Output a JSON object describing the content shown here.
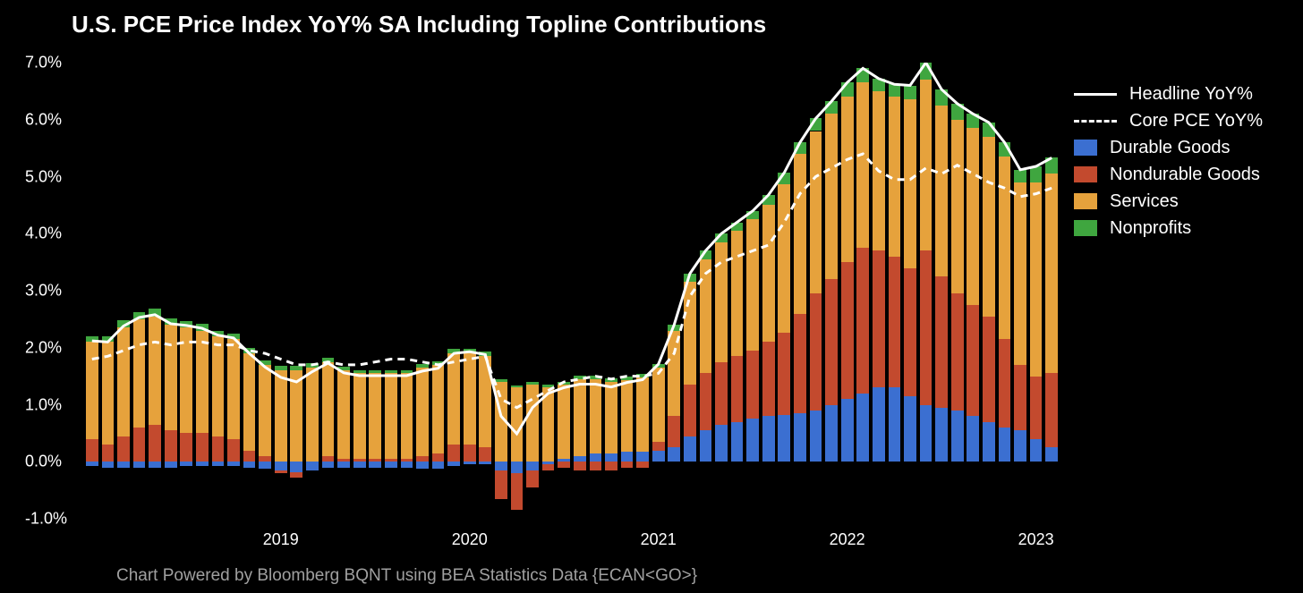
{
  "title": "U.S. PCE Price Index YoY% SA Including Topline Contributions",
  "footer": "Chart Powered by Bloomberg BQNT using BEA Statistics Data    {ECAN<GO>}",
  "chart": {
    "type": "stacked-bar-with-lines",
    "background_color": "#000000",
    "text_color": "#ffffff",
    "footer_color": "#a0a0a0",
    "title_fontsize": 26,
    "axis_fontsize": 18,
    "legend_fontsize": 20,
    "footer_fontsize": 19,
    "ylim": [
      -1.0,
      7.0
    ],
    "yticks": [
      -1.0,
      0.0,
      1.0,
      2.0,
      3.0,
      4.0,
      5.0,
      6.0,
      7.0
    ],
    "ytick_labels": [
      "-1.0%",
      "0.0%",
      "1.0%",
      "2.0%",
      "3.0%",
      "4.0%",
      "5.0%",
      "6.0%",
      "7.0%"
    ],
    "xtick_years": [
      "2019",
      "2020",
      "2021",
      "2022",
      "2023"
    ],
    "xtick_indices": [
      12,
      24,
      36,
      48,
      60
    ],
    "bar_gap_ratio": 0.22,
    "series_colors": {
      "durable": "#3b6fd1",
      "nondurable": "#c34a2e",
      "services": "#e6a23c",
      "nonprofits": "#3fa63f"
    },
    "line_styles": {
      "headline": {
        "color": "#ffffff",
        "width": 3,
        "dash": "none"
      },
      "core": {
        "color": "#ffffff",
        "width": 3,
        "dash": "8,6"
      }
    },
    "legend": [
      {
        "kind": "line",
        "style": "headline",
        "label": "Headline YoY%"
      },
      {
        "kind": "line",
        "style": "core",
        "label": "Core PCE YoY%"
      },
      {
        "kind": "swatch",
        "color_key": "durable",
        "label": "Durable Goods"
      },
      {
        "kind": "swatch",
        "color_key": "nondurable",
        "label": "Nondurable Goods"
      },
      {
        "kind": "swatch",
        "color_key": "services",
        "label": "Services"
      },
      {
        "kind": "swatch",
        "color_key": "nonprofits",
        "label": "Nonprofits"
      }
    ],
    "stack_order": [
      "durable",
      "nondurable",
      "services",
      "nonprofits"
    ],
    "bars": [
      {
        "durable": -0.08,
        "nondurable": 0.4,
        "services": 1.7,
        "nonprofits": 0.1
      },
      {
        "durable": -0.1,
        "nondurable": 0.3,
        "services": 1.8,
        "nonprofits": 0.1
      },
      {
        "durable": -0.1,
        "nondurable": 0.45,
        "services": 1.9,
        "nonprofits": 0.13
      },
      {
        "durable": -0.1,
        "nondurable": 0.6,
        "services": 1.9,
        "nonprofits": 0.13
      },
      {
        "durable": -0.1,
        "nondurable": 0.65,
        "services": 1.9,
        "nonprofits": 0.13
      },
      {
        "durable": -0.1,
        "nondurable": 0.55,
        "services": 1.85,
        "nonprofits": 0.12
      },
      {
        "durable": -0.08,
        "nondurable": 0.5,
        "services": 1.85,
        "nonprofits": 0.12
      },
      {
        "durable": -0.08,
        "nondurable": 0.5,
        "services": 1.8,
        "nonprofits": 0.12
      },
      {
        "durable": -0.08,
        "nondurable": 0.45,
        "services": 1.75,
        "nonprofits": 0.1
      },
      {
        "durable": -0.08,
        "nondurable": 0.4,
        "services": 1.75,
        "nonprofits": 0.1
      },
      {
        "durable": -0.1,
        "nondurable": 0.2,
        "services": 1.7,
        "nonprofits": 0.1
      },
      {
        "durable": -0.12,
        "nondurable": 0.1,
        "services": 1.6,
        "nonprofits": 0.08
      },
      {
        "durable": -0.15,
        "nondurable": -0.05,
        "services": 1.6,
        "nonprofits": 0.08
      },
      {
        "durable": -0.18,
        "nondurable": -0.1,
        "services": 1.6,
        "nonprofits": 0.08
      },
      {
        "durable": -0.15,
        "nondurable": 0.0,
        "services": 1.65,
        "nonprofits": 0.08
      },
      {
        "durable": -0.1,
        "nondurable": 0.1,
        "services": 1.65,
        "nonprofits": 0.08
      },
      {
        "durable": -0.1,
        "nondurable": 0.05,
        "services": 1.55,
        "nonprofits": 0.06
      },
      {
        "durable": -0.1,
        "nondurable": 0.05,
        "services": 1.5,
        "nonprofits": 0.06
      },
      {
        "durable": -0.1,
        "nondurable": 0.05,
        "services": 1.5,
        "nonprofits": 0.06
      },
      {
        "durable": -0.1,
        "nondurable": 0.05,
        "services": 1.5,
        "nonprofits": 0.06
      },
      {
        "durable": -0.1,
        "nondurable": 0.05,
        "services": 1.5,
        "nonprofits": 0.06
      },
      {
        "durable": -0.12,
        "nondurable": 0.1,
        "services": 1.55,
        "nonprofits": 0.06
      },
      {
        "durable": -0.12,
        "nondurable": 0.15,
        "services": 1.55,
        "nonprofits": 0.06
      },
      {
        "durable": -0.08,
        "nondurable": 0.3,
        "services": 1.6,
        "nonprofits": 0.08
      },
      {
        "durable": -0.05,
        "nondurable": 0.3,
        "services": 1.6,
        "nonprofits": 0.08
      },
      {
        "durable": -0.05,
        "nondurable": 0.25,
        "services": 1.6,
        "nonprofits": 0.08
      },
      {
        "durable": -0.15,
        "nondurable": -0.5,
        "services": 1.4,
        "nonprofits": 0.05
      },
      {
        "durable": -0.2,
        "nondurable": -0.65,
        "services": 1.3,
        "nonprofits": 0.04
      },
      {
        "durable": -0.15,
        "nondurable": -0.3,
        "services": 1.35,
        "nonprofits": 0.05
      },
      {
        "durable": -0.05,
        "nondurable": -0.1,
        "services": 1.3,
        "nonprofits": 0.05
      },
      {
        "durable": 0.05,
        "nondurable": -0.1,
        "services": 1.3,
        "nonprofits": 0.05
      },
      {
        "durable": 0.1,
        "nondurable": -0.15,
        "services": 1.35,
        "nonprofits": 0.06
      },
      {
        "durable": 0.15,
        "nondurable": -0.15,
        "services": 1.3,
        "nonprofits": 0.06
      },
      {
        "durable": 0.15,
        "nondurable": -0.15,
        "services": 1.25,
        "nonprofits": 0.06
      },
      {
        "durable": 0.18,
        "nondurable": -0.1,
        "services": 1.25,
        "nonprofits": 0.06
      },
      {
        "durable": 0.18,
        "nondurable": -0.1,
        "services": 1.3,
        "nonprofits": 0.06
      },
      {
        "durable": 0.2,
        "nondurable": 0.15,
        "services": 1.3,
        "nonprofits": 0.06
      },
      {
        "durable": 0.25,
        "nondurable": 0.55,
        "services": 1.5,
        "nonprofits": 0.1
      },
      {
        "durable": 0.45,
        "nondurable": 0.9,
        "services": 1.8,
        "nonprofits": 0.15
      },
      {
        "durable": 0.55,
        "nondurable": 1.0,
        "services": 2.0,
        "nonprofits": 0.15
      },
      {
        "durable": 0.65,
        "nondurable": 1.1,
        "services": 2.1,
        "nonprofits": 0.15
      },
      {
        "durable": 0.7,
        "nondurable": 1.15,
        "services": 2.2,
        "nonprofits": 0.15
      },
      {
        "durable": 0.75,
        "nondurable": 1.2,
        "services": 2.3,
        "nonprofits": 0.15
      },
      {
        "durable": 0.8,
        "nondurable": 1.3,
        "services": 2.4,
        "nonprofits": 0.18
      },
      {
        "durable": 0.82,
        "nondurable": 1.45,
        "services": 2.6,
        "nonprofits": 0.2
      },
      {
        "durable": 0.85,
        "nondurable": 1.75,
        "services": 2.8,
        "nonprofits": 0.2
      },
      {
        "durable": 0.9,
        "nondurable": 2.05,
        "services": 2.85,
        "nonprofits": 0.22
      },
      {
        "durable": 1.0,
        "nondurable": 2.2,
        "services": 2.9,
        "nonprofits": 0.22
      },
      {
        "durable": 1.1,
        "nondurable": 2.4,
        "services": 2.9,
        "nonprofits": 0.25
      },
      {
        "durable": 1.2,
        "nondurable": 2.55,
        "services": 2.9,
        "nonprofits": 0.25
      },
      {
        "durable": 1.3,
        "nondurable": 2.4,
        "services": 2.8,
        "nonprofits": 0.22
      },
      {
        "durable": 1.3,
        "nondurable": 2.3,
        "services": 2.8,
        "nonprofits": 0.22
      },
      {
        "durable": 1.15,
        "nondurable": 2.25,
        "services": 2.95,
        "nonprofits": 0.25
      },
      {
        "durable": 1.0,
        "nondurable": 2.7,
        "services": 3.0,
        "nonprofits": 0.3
      },
      {
        "durable": 0.95,
        "nondurable": 2.3,
        "services": 3.0,
        "nonprofits": 0.28
      },
      {
        "durable": 0.9,
        "nondurable": 2.05,
        "services": 3.05,
        "nonprofits": 0.28
      },
      {
        "durable": 0.8,
        "nondurable": 1.95,
        "services": 3.1,
        "nonprofits": 0.25
      },
      {
        "durable": 0.7,
        "nondurable": 1.85,
        "services": 3.15,
        "nonprofits": 0.25
      },
      {
        "durable": 0.6,
        "nondurable": 1.55,
        "services": 3.2,
        "nonprofits": 0.25
      },
      {
        "durable": 0.55,
        "nondurable": 1.15,
        "services": 3.2,
        "nonprofits": 0.22
      },
      {
        "durable": 0.4,
        "nondurable": 1.1,
        "services": 3.4,
        "nonprofits": 0.28
      },
      {
        "durable": 0.25,
        "nondurable": 1.3,
        "services": 3.5,
        "nonprofits": 0.28
      }
    ],
    "headline": [
      2.12,
      2.1,
      2.38,
      2.53,
      2.58,
      2.42,
      2.39,
      2.34,
      2.22,
      2.17,
      1.9,
      1.66,
      1.48,
      1.4,
      1.58,
      1.73,
      1.56,
      1.51,
      1.51,
      1.51,
      1.51,
      1.59,
      1.64,
      1.9,
      1.93,
      1.88,
      0.8,
      0.49,
      0.95,
      1.2,
      1.3,
      1.36,
      1.36,
      1.31,
      1.39,
      1.44,
      1.71,
      2.4,
      3.3,
      3.7,
      4.0,
      4.2,
      4.4,
      4.68,
      5.07,
      5.6,
      6.02,
      6.32,
      6.65,
      6.9,
      6.72,
      6.62,
      6.6,
      7.0,
      6.53,
      6.28,
      6.1,
      5.95,
      5.6,
      5.12,
      5.18,
      5.33
    ],
    "core": [
      1.8,
      1.85,
      1.95,
      2.05,
      2.1,
      2.05,
      2.1,
      2.1,
      2.05,
      2.05,
      1.95,
      1.9,
      1.8,
      1.7,
      1.7,
      1.75,
      1.7,
      1.7,
      1.75,
      1.8,
      1.8,
      1.75,
      1.7,
      1.75,
      1.8,
      1.85,
      1.1,
      0.95,
      1.1,
      1.25,
      1.4,
      1.45,
      1.5,
      1.45,
      1.5,
      1.5,
      1.55,
      1.9,
      2.9,
      3.3,
      3.5,
      3.6,
      3.7,
      3.8,
      4.2,
      4.7,
      5.0,
      5.15,
      5.3,
      5.4,
      5.1,
      4.95,
      4.95,
      5.15,
      5.05,
      5.2,
      5.05,
      4.9,
      4.8,
      4.65,
      4.7,
      4.8
    ]
  }
}
